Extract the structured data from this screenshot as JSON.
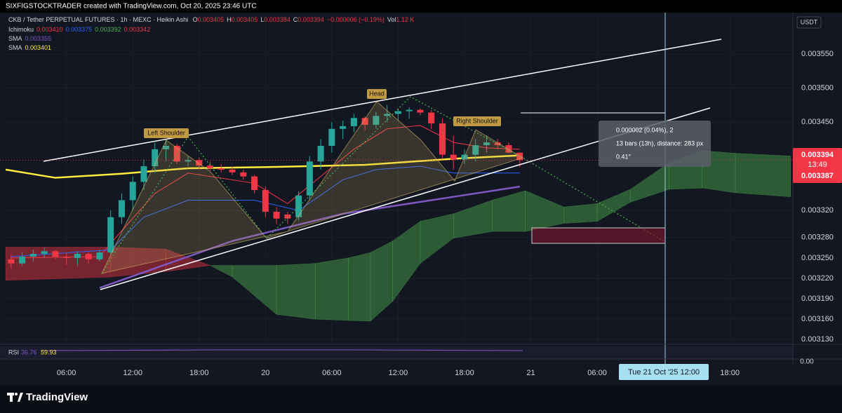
{
  "header": {
    "credit": "SIXFIGSTOCKTRADER created with TradingView.com, Oct 20, 2025 23:46 UTC"
  },
  "legend": {
    "symbol": "CKB / Tether PERPETUAL FUTURES · 1h · MEXC · Heikin Ashi",
    "ohlc": [
      {
        "label": "O",
        "value": "0.003405"
      },
      {
        "label": "H",
        "value": "0.003405"
      },
      {
        "label": "L",
        "value": "0.003384"
      },
      {
        "label": "C",
        "value": "0.003394"
      }
    ],
    "change": "−0.000006 (−0.19%)",
    "volume_label": "Vol",
    "volume": "1.12 K",
    "indicators": [
      {
        "name": "Ichimoku",
        "values": [
          "0.003410",
          "0.003375",
          "0.003392",
          "0.003342"
        ],
        "colors": [
          "#f23645",
          "#2962ff",
          "#4caf50",
          "#f23645"
        ]
      },
      {
        "name": "SMA",
        "values": [
          "0.003355"
        ],
        "colors": [
          "#7e57c2"
        ]
      },
      {
        "name": "SMA",
        "values": [
          "0.003401"
        ],
        "colors": [
          "#ffeb3b"
        ]
      }
    ]
  },
  "currency": "USDT",
  "chart_data": {
    "type": "candlestick",
    "categories": [
      null,
      null,
      null,
      null,
      null,
      null,
      null,
      null,
      null,
      null,
      null,
      null,
      null,
      null,
      null,
      null,
      null,
      null,
      null,
      null,
      null,
      null,
      null,
      null,
      null,
      null,
      null,
      null,
      null,
      null,
      null,
      null,
      null,
      null,
      null,
      null,
      null,
      null,
      null,
      null,
      null,
      null,
      null,
      null,
      null,
      null,
      null
    ],
    "open": [
      0.003248,
      0.003242,
      0.003252,
      0.003256,
      0.00326,
      0.003252,
      0.00325,
      0.003256,
      0.003248,
      0.003258,
      0.00331,
      0.003335,
      0.003362,
      0.003385,
      0.00341,
      0.003415,
      0.003392,
      0.003394,
      0.003386,
      0.003382,
      0.00338,
      0.003376,
      0.00337,
      0.00335,
      0.003318,
      0.003314,
      0.00331,
      0.003342,
      0.003392,
      0.003415,
      0.00344,
      0.003444,
      0.003456,
      0.003446,
      0.003459,
      0.003462,
      0.003466,
      0.003468,
      0.003464,
      0.003448,
      0.003402,
      0.003395,
      0.003402,
      0.003416,
      0.00342,
      0.003416,
      0.003405
    ],
    "high": [
      0.003255,
      0.003258,
      0.003262,
      0.003265,
      0.003262,
      0.003258,
      0.00326,
      0.003258,
      0.003262,
      0.00332,
      0.003345,
      0.00337,
      0.003395,
      0.00342,
      0.003425,
      0.003418,
      0.0034,
      0.003398,
      0.003392,
      0.003388,
      0.003384,
      0.00338,
      0.003372,
      0.003355,
      0.003325,
      0.003318,
      0.003348,
      0.0034,
      0.003425,
      0.00345,
      0.003452,
      0.003462,
      0.003458,
      0.003465,
      0.003475,
      0.00347,
      0.003472,
      0.00347,
      0.003468,
      0.003455,
      0.00343,
      0.00341,
      0.003425,
      0.00343,
      0.003425,
      0.00342,
      0.003405
    ],
    "low": [
      0.003235,
      0.003238,
      0.003245,
      0.00325,
      0.003248,
      0.00324,
      0.003238,
      0.003242,
      0.003245,
      0.003255,
      0.0033,
      0.00332,
      0.00335,
      0.003375,
      0.003392,
      0.003388,
      0.003385,
      0.00338,
      0.003378,
      0.003376,
      0.003372,
      0.003365,
      0.003345,
      0.00331,
      0.0033,
      0.0033,
      0.003305,
      0.003335,
      0.00338,
      0.003405,
      0.003425,
      0.003435,
      0.003438,
      0.00344,
      0.00345,
      0.003452,
      0.003455,
      0.00346,
      0.00344,
      0.003395,
      0.00338,
      0.003388,
      0.003392,
      0.003405,
      0.00341,
      0.003405,
      0.003384
    ],
    "close": [
      0.003242,
      0.003252,
      0.003256,
      0.00326,
      0.003252,
      0.00325,
      0.003256,
      0.003248,
      0.003258,
      0.00331,
      0.003335,
      0.003362,
      0.003385,
      0.00341,
      0.003415,
      0.003392,
      0.003394,
      0.003386,
      0.003382,
      0.00338,
      0.003376,
      0.00337,
      0.00335,
      0.003318,
      0.003308,
      0.003308,
      0.003342,
      0.003392,
      0.003415,
      0.00344,
      0.003444,
      0.003456,
      0.003446,
      0.003459,
      0.003462,
      0.003466,
      0.003468,
      0.003464,
      0.003448,
      0.003402,
      0.003395,
      0.003402,
      0.003416,
      0.00342,
      0.003416,
      0.003405,
      0.003394
    ],
    "up_color": "#26a69a",
    "down_color": "#f23645",
    "xlim": [
      -0.5,
      70.7
    ],
    "ylim": [
      0.003124,
      0.003609
    ],
    "xticks": [
      {
        "value": 5,
        "label": "06:00"
      },
      {
        "value": 11,
        "label": "12:00"
      },
      {
        "value": 17,
        "label": "18:00"
      },
      {
        "value": 23,
        "label": "20"
      },
      {
        "value": 29,
        "label": "06:00"
      },
      {
        "value": 35,
        "label": "12:00"
      },
      {
        "value": 41,
        "label": "18:00"
      },
      {
        "value": 47,
        "label": "21"
      },
      {
        "value": 53,
        "label": "06:00"
      },
      {
        "value": 65,
        "label": "18:00"
      }
    ],
    "yticks": [
      {
        "value": 0.00355,
        "label": "0.003550"
      },
      {
        "value": 0.0035,
        "label": "0.003500"
      },
      {
        "value": 0.00345,
        "label": "0.003450"
      },
      {
        "value": 0.00332,
        "label": "0.003320"
      },
      {
        "value": 0.00328,
        "label": "0.003280"
      },
      {
        "value": 0.00325,
        "label": "0.003250"
      },
      {
        "value": 0.00322,
        "label": "0.003220"
      },
      {
        "value": 0.00319,
        "label": "0.003190"
      },
      {
        "value": 0.00316,
        "label": "0.003160"
      },
      {
        "value": 0.00313,
        "label": "0.003130"
      }
    ],
    "grid": true,
    "cloud": {
      "x": [
        -0.5,
        9,
        14,
        18,
        20,
        24,
        27.5,
        30.5,
        32.5,
        34.5,
        37,
        40,
        43.5,
        46.5,
        50,
        53,
        56,
        59.5,
        62.5,
        65.5,
        70.5
      ],
      "span_a": [
        0.003217,
        0.003222,
        0.00323,
        0.003239,
        0.003239,
        0.003239,
        0.003242,
        0.00325,
        0.003258,
        0.003275,
        0.003304,
        0.003315,
        0.003335,
        0.003349,
        0.003325,
        0.00333,
        0.003351,
        0.00339,
        0.003408,
        0.003404,
        0.0034
      ],
      "span_b": [
        0.003266,
        0.003266,
        0.003263,
        0.003239,
        0.003222,
        0.003167,
        0.00316,
        0.003158,
        0.003157,
        0.003186,
        0.003242,
        0.003279,
        0.003289,
        0.003289,
        0.003301,
        0.003304,
        0.003332,
        0.003351,
        0.003353,
        0.003346,
        0.00334
      ],
      "up_color": "#4caf50",
      "down_color": "#f23645"
    },
    "lines": [
      {
        "color": "#f23645",
        "width": 1,
        "x": [
          0,
          8,
          10,
          13,
          16,
          22,
          25,
          28,
          31,
          34,
          37,
          40,
          43,
          46
        ],
        "values": [
          0.00325,
          0.003252,
          0.00329,
          0.003345,
          0.003375,
          0.00336,
          0.00333,
          0.00337,
          0.00341,
          0.00344,
          0.003445,
          0.00342,
          0.003412,
          0.00341
        ]
      },
      {
        "color": "#2962ff",
        "width": 1,
        "x": [
          0,
          9,
          12,
          16,
          22,
          26,
          30,
          33,
          37,
          40,
          43,
          46
        ],
        "values": [
          0.003252,
          0.003262,
          0.00331,
          0.003335,
          0.003335,
          0.00332,
          0.003365,
          0.00338,
          0.003385,
          0.003375,
          0.003375,
          0.003375
        ]
      },
      {
        "color": "#7e57c2",
        "width": 2.5,
        "x": [
          8,
          20,
          30,
          40,
          46
        ],
        "values": [
          0.003206,
          0.003275,
          0.003315,
          0.00334,
          0.003355
        ]
      },
      {
        "color": "#ffeb3b",
        "width": 2.5,
        "x": [
          -0.5,
          4,
          10,
          16,
          24,
          32,
          40,
          46
        ],
        "values": [
          0.00338,
          0.003368,
          0.003374,
          0.003382,
          0.003384,
          0.003387,
          0.003396,
          0.003401
        ]
      }
    ],
    "last_price": {
      "value": 0.003394,
      "label": "0.003394",
      "countdown": "13:49",
      "crosshair_label": "0.003387"
    },
    "crosshair_time": "Tue 21 Oct '25   12:00"
  },
  "annotations": {
    "left_shoulder": "Left Shoulder",
    "head": "Head",
    "right_shoulder": "Right Shoulder",
    "measure": [
      "0.000002 (0.04%), 2",
      "13 bars (13h), distance: 283 px",
      "0.41°"
    ]
  },
  "rsi": {
    "label": "RSI",
    "values": [
      "36.76",
      "59.93"
    ],
    "axis_label": "0.00"
  },
  "footer": {
    "brand": "TradingView"
  }
}
